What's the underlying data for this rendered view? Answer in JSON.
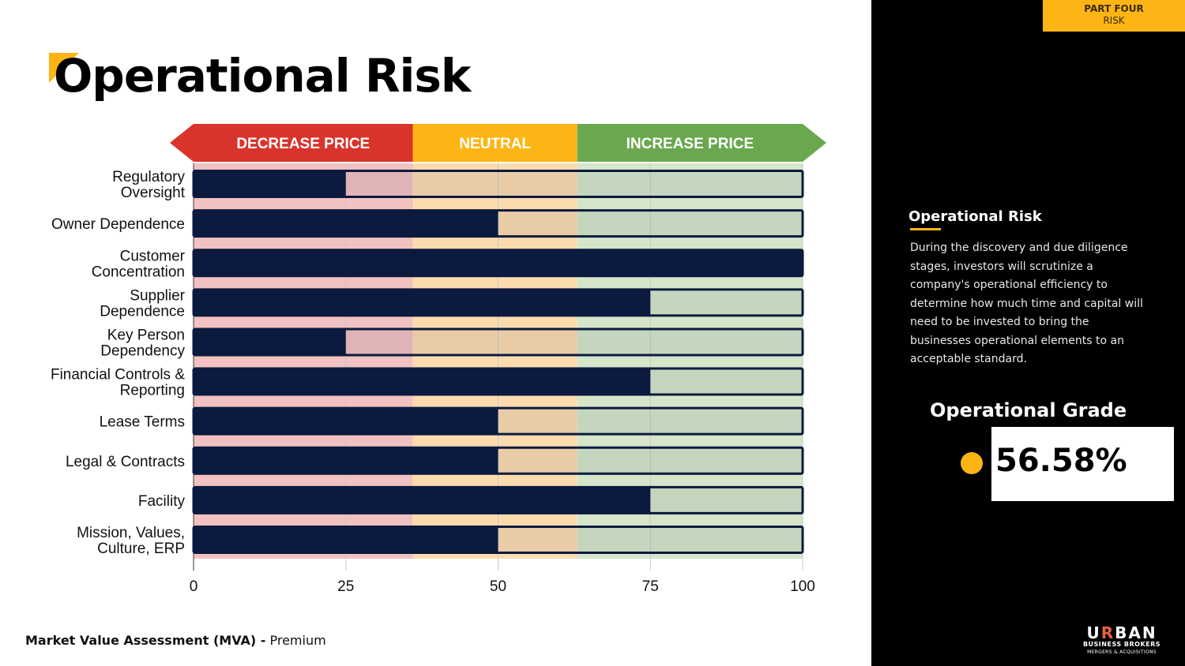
{
  "header": {
    "title": "Operational Risk",
    "part_label": "PART FOUR",
    "part_name": "RISK"
  },
  "chart_data": {
    "type": "bar",
    "orientation": "horizontal",
    "title": "Operational Risk",
    "categories": [
      [
        "Regulatory",
        "Oversight"
      ],
      [
        "Owner Dependence"
      ],
      [
        "Customer",
        "Concentration"
      ],
      [
        "Supplier",
        "Dependence"
      ],
      [
        "Key Person",
        "Dependency"
      ],
      [
        "Financial Controls &",
        "Reporting"
      ],
      [
        "Lease Terms"
      ],
      [
        "Legal & Contracts"
      ],
      [
        "Facility"
      ],
      [
        "Mission, Values,",
        "Culture, ERP"
      ]
    ],
    "values": [
      25,
      50,
      100,
      75,
      25,
      75,
      50,
      50,
      75,
      50
    ],
    "max_value": 100,
    "xlim": [
      0,
      100
    ],
    "xticks": [
      0,
      25,
      50,
      75,
      100
    ],
    "xlabel": "",
    "ylabel": "",
    "grid": true,
    "zones": [
      {
        "label": "DECREASE PRICE",
        "from": 0,
        "to": 36,
        "color": "#d9342b",
        "band_color": "#f2c1c1"
      },
      {
        "label": "NEUTRAL",
        "from": 36,
        "to": 63,
        "color": "#fdb515",
        "band_color": "#fcdcaf"
      },
      {
        "label": "INCREASE PRICE",
        "from": 63,
        "to": 100,
        "color": "#6aa84f",
        "band_color": "#d5e6ca"
      }
    ],
    "bar_color": "#0b1a3e"
  },
  "sidebar": {
    "heading": "Operational Risk",
    "description": "During the discovery and due diligence stages, investors will scrutinize a company's operational efficiency to determine how much time and capital will need to be invested to bring the businesses operational elements to an acceptable standard.",
    "grade_title": "Operational Grade",
    "grade_value": "56.58%",
    "grade_color": "#fdb515"
  },
  "footer": {
    "bold": "Market Value Assessment (MVA) -",
    "normal": " Premium"
  },
  "logo": {
    "brand_start": "U",
    "brand_r": "R",
    "brand_end": "BAN",
    "line1": "BUSINESS BROKERS",
    "line2": "MERGERS & ACQUISITIONS"
  }
}
